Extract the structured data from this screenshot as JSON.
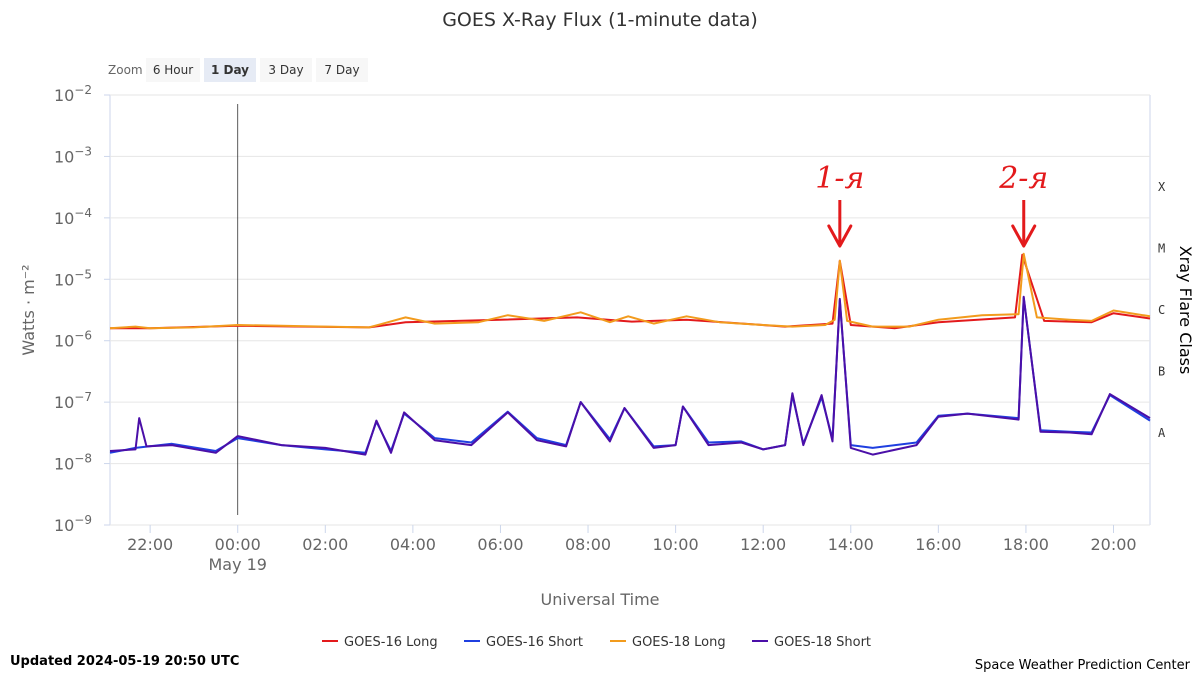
{
  "chart_data": {
    "type": "line",
    "title": "GOES X-Ray Flux (1-minute data)",
    "xlabel": "Universal Time",
    "ylabel": "Watts · m⁻²",
    "y_scale": "log",
    "ylim": [
      1e-09,
      0.01
    ],
    "y_ticks": [
      {
        "value": 0.01,
        "base": "10",
        "exp": "−2"
      },
      {
        "value": 0.001,
        "base": "10",
        "exp": "−3"
      },
      {
        "value": 0.0001,
        "base": "10",
        "exp": "−4"
      },
      {
        "value": 1e-05,
        "base": "10",
        "exp": "−5"
      },
      {
        "value": 1e-06,
        "base": "10",
        "exp": "−6"
      },
      {
        "value": 1e-07,
        "base": "10",
        "exp": "−7"
      },
      {
        "value": 1e-08,
        "base": "10",
        "exp": "−8"
      },
      {
        "value": 1e-09,
        "base": "10",
        "exp": "−9"
      }
    ],
    "xlim": [
      "2024-05-18T21:05",
      "2024-05-19T20:50"
    ],
    "x_ticks": [
      {
        "time": "2024-05-18T22:00",
        "label": "22:00"
      },
      {
        "time": "2024-05-19T00:00",
        "label": "00:00",
        "sublabel": "May 19"
      },
      {
        "time": "2024-05-19T02:00",
        "label": "02:00"
      },
      {
        "time": "2024-05-19T04:00",
        "label": "04:00"
      },
      {
        "time": "2024-05-19T06:00",
        "label": "06:00"
      },
      {
        "time": "2024-05-19T08:00",
        "label": "08:00"
      },
      {
        "time": "2024-05-19T10:00",
        "label": "10:00"
      },
      {
        "time": "2024-05-19T12:00",
        "label": "12:00"
      },
      {
        "time": "2024-05-19T14:00",
        "label": "14:00"
      },
      {
        "time": "2024-05-19T16:00",
        "label": "16:00"
      },
      {
        "time": "2024-05-19T18:00",
        "label": "18:00"
      },
      {
        "time": "2024-05-19T20:00",
        "label": "20:00"
      }
    ],
    "day_marker": "2024-05-19T00:00",
    "right_axis": {
      "title": "Xray Flare Class",
      "classes": [
        {
          "label": "X",
          "value": 0.0001
        },
        {
          "label": "M",
          "value": 1e-05
        },
        {
          "label": "C",
          "value": 1e-06
        },
        {
          "label": "B",
          "value": 1e-07
        },
        {
          "label": "A",
          "value": 1e-08
        }
      ]
    },
    "grid": "horizontal",
    "legend_position": "bottom-center",
    "series": [
      {
        "name": "GOES-16 Long",
        "color": "#e31a1c",
        "points": [
          [
            "2024-05-18T21:05",
            1.6e-06
          ],
          [
            "2024-05-18T22:00",
            1.6e-06
          ],
          [
            "2024-05-19T00:00",
            1.75e-06
          ],
          [
            "2024-05-19T03:00",
            1.65e-06
          ],
          [
            "2024-05-19T03:50",
            2e-06
          ],
          [
            "2024-05-19T06:00",
            2.2e-06
          ],
          [
            "2024-05-19T07:45",
            2.4e-06
          ],
          [
            "2024-05-19T09:00",
            2.05e-06
          ],
          [
            "2024-05-19T10:15",
            2.2e-06
          ],
          [
            "2024-05-19T12:30",
            1.7e-06
          ],
          [
            "2024-05-19T13:35",
            1.9e-06
          ],
          [
            "2024-05-19T13:45",
            2e-05
          ],
          [
            "2024-05-19T14:00",
            1.8e-06
          ],
          [
            "2024-05-19T15:00",
            1.6e-06
          ],
          [
            "2024-05-19T16:00",
            2e-06
          ],
          [
            "2024-05-19T17:45",
            2.4e-06
          ],
          [
            "2024-05-19T17:55",
            2.5e-05
          ],
          [
            "2024-05-19T18:25",
            2.1e-06
          ],
          [
            "2024-05-19T19:30",
            2e-06
          ],
          [
            "2024-05-19T20:00",
            2.8e-06
          ],
          [
            "2024-05-19T20:50",
            2.3e-06
          ]
        ]
      },
      {
        "name": "GOES-16 Short",
        "color": "#1f3fe0",
        "points": [
          [
            "2024-05-18T21:05",
            1.5e-08
          ],
          [
            "2024-05-18T21:40",
            1.8e-08
          ],
          [
            "2024-05-18T22:30",
            2.1e-08
          ],
          [
            "2024-05-18T23:30",
            1.6e-08
          ],
          [
            "2024-05-19T00:00",
            2.6e-08
          ],
          [
            "2024-05-19T01:00",
            2e-08
          ],
          [
            "2024-05-19T02:00",
            1.7e-08
          ],
          [
            "2024-05-19T02:55",
            1.5e-08
          ],
          [
            "2024-05-19T03:10",
            4.8e-08
          ],
          [
            "2024-05-19T03:30",
            1.6e-08
          ],
          [
            "2024-05-19T03:48",
            6.5e-08
          ],
          [
            "2024-05-19T04:30",
            2.6e-08
          ],
          [
            "2024-05-19T05:20",
            2.2e-08
          ],
          [
            "2024-05-19T06:10",
            7e-08
          ],
          [
            "2024-05-19T06:50",
            2.6e-08
          ],
          [
            "2024-05-19T07:30",
            2e-08
          ],
          [
            "2024-05-19T07:50",
            1e-07
          ],
          [
            "2024-05-19T08:30",
            2.5e-08
          ],
          [
            "2024-05-19T08:50",
            8e-08
          ],
          [
            "2024-05-19T09:30",
            1.9e-08
          ],
          [
            "2024-05-19T10:00",
            2e-08
          ],
          [
            "2024-05-19T10:10",
            8.5e-08
          ],
          [
            "2024-05-19T10:45",
            2.2e-08
          ],
          [
            "2024-05-19T11:30",
            2.3e-08
          ],
          [
            "2024-05-19T12:00",
            1.7e-08
          ],
          [
            "2024-05-19T12:30",
            2e-08
          ],
          [
            "2024-05-19T12:40",
            1.3e-07
          ],
          [
            "2024-05-19T12:55",
            2.1e-08
          ],
          [
            "2024-05-19T13:20",
            1.2e-07
          ],
          [
            "2024-05-19T13:35",
            2.5e-08
          ],
          [
            "2024-05-19T13:45",
            4.5e-06
          ],
          [
            "2024-05-19T14:00",
            2e-08
          ],
          [
            "2024-05-19T14:30",
            1.8e-08
          ],
          [
            "2024-05-19T15:30",
            2.2e-08
          ],
          [
            "2024-05-19T16:00",
            6e-08
          ],
          [
            "2024-05-19T16:40",
            6.5e-08
          ],
          [
            "2024-05-19T17:50",
            5.5e-08
          ],
          [
            "2024-05-19T17:57",
            5e-06
          ],
          [
            "2024-05-19T18:20",
            3.5e-08
          ],
          [
            "2024-05-19T19:00",
            3.3e-08
          ],
          [
            "2024-05-19T19:30",
            3.2e-08
          ],
          [
            "2024-05-19T19:55",
            1.3e-07
          ],
          [
            "2024-05-19T20:50",
            5e-08
          ]
        ]
      },
      {
        "name": "GOES-18 Long",
        "color": "#f29b1d",
        "points": [
          [
            "2024-05-18T21:05",
            1.6e-06
          ],
          [
            "2024-05-18T21:40",
            1.7e-06
          ],
          [
            "2024-05-18T22:00",
            1.6e-06
          ],
          [
            "2024-05-18T23:00",
            1.65e-06
          ],
          [
            "2024-05-19T00:00",
            1.8e-06
          ],
          [
            "2024-05-19T01:00",
            1.75e-06
          ],
          [
            "2024-05-19T02:00",
            1.7e-06
          ],
          [
            "2024-05-19T03:00",
            1.65e-06
          ],
          [
            "2024-05-19T03:50",
            2.4e-06
          ],
          [
            "2024-05-19T04:30",
            1.9e-06
          ],
          [
            "2024-05-19T05:30",
            2e-06
          ],
          [
            "2024-05-19T06:10",
            2.6e-06
          ],
          [
            "2024-05-19T07:00",
            2.1e-06
          ],
          [
            "2024-05-19T07:50",
            2.9e-06
          ],
          [
            "2024-05-19T08:30",
            2e-06
          ],
          [
            "2024-05-19T08:55",
            2.5e-06
          ],
          [
            "2024-05-19T09:30",
            1.9e-06
          ],
          [
            "2024-05-19T10:15",
            2.5e-06
          ],
          [
            "2024-05-19T11:00",
            2e-06
          ],
          [
            "2024-05-19T12:00",
            1.8e-06
          ],
          [
            "2024-05-19T12:40",
            1.7e-06
          ],
          [
            "2024-05-19T13:25",
            1.8e-06
          ],
          [
            "2024-05-19T13:38",
            2.2e-06
          ],
          [
            "2024-05-19T13:45",
            2e-05
          ],
          [
            "2024-05-19T13:55",
            2.1e-06
          ],
          [
            "2024-05-19T14:30",
            1.7e-06
          ],
          [
            "2024-05-19T15:20",
            1.7e-06
          ],
          [
            "2024-05-19T16:00",
            2.2e-06
          ],
          [
            "2024-05-19T17:00",
            2.6e-06
          ],
          [
            "2024-05-19T17:50",
            2.7e-06
          ],
          [
            "2024-05-19T17:57",
            2.6e-05
          ],
          [
            "2024-05-19T18:15",
            2.4e-06
          ],
          [
            "2024-05-19T19:00",
            2.2e-06
          ],
          [
            "2024-05-19T19:30",
            2.1e-06
          ],
          [
            "2024-05-19T20:00",
            3.1e-06
          ],
          [
            "2024-05-19T20:50",
            2.5e-06
          ]
        ]
      },
      {
        "name": "GOES-18 Short",
        "color": "#4b0fa8",
        "points": [
          [
            "2024-05-18T21:05",
            1.6e-08
          ],
          [
            "2024-05-18T21:40",
            1.7e-08
          ],
          [
            "2024-05-18T21:45",
            5.5e-08
          ],
          [
            "2024-05-18T21:55",
            1.9e-08
          ],
          [
            "2024-05-18T22:30",
            2e-08
          ],
          [
            "2024-05-18T23:30",
            1.5e-08
          ],
          [
            "2024-05-19T00:00",
            2.8e-08
          ],
          [
            "2024-05-19T01:00",
            2e-08
          ],
          [
            "2024-05-19T02:00",
            1.8e-08
          ],
          [
            "2024-05-19T02:55",
            1.4e-08
          ],
          [
            "2024-05-19T03:10",
            5e-08
          ],
          [
            "2024-05-19T03:30",
            1.5e-08
          ],
          [
            "2024-05-19T03:48",
            6.8e-08
          ],
          [
            "2024-05-19T04:30",
            2.4e-08
          ],
          [
            "2024-05-19T05:20",
            2e-08
          ],
          [
            "2024-05-19T06:10",
            6.8e-08
          ],
          [
            "2024-05-19T06:50",
            2.4e-08
          ],
          [
            "2024-05-19T07:30",
            1.9e-08
          ],
          [
            "2024-05-19T07:50",
            1e-07
          ],
          [
            "2024-05-19T08:30",
            2.3e-08
          ],
          [
            "2024-05-19T08:50",
            8e-08
          ],
          [
            "2024-05-19T09:30",
            1.8e-08
          ],
          [
            "2024-05-19T10:00",
            2e-08
          ],
          [
            "2024-05-19T10:10",
            8.5e-08
          ],
          [
            "2024-05-19T10:45",
            2e-08
          ],
          [
            "2024-05-19T11:30",
            2.2e-08
          ],
          [
            "2024-05-19T12:00",
            1.7e-08
          ],
          [
            "2024-05-19T12:30",
            2e-08
          ],
          [
            "2024-05-19T12:40",
            1.4e-07
          ],
          [
            "2024-05-19T12:55",
            2e-08
          ],
          [
            "2024-05-19T13:20",
            1.3e-07
          ],
          [
            "2024-05-19T13:35",
            2.3e-08
          ],
          [
            "2024-05-19T13:45",
            4.8e-06
          ],
          [
            "2024-05-19T14:00",
            1.8e-08
          ],
          [
            "2024-05-19T14:30",
            1.4e-08
          ],
          [
            "2024-05-19T15:30",
            2e-08
          ],
          [
            "2024-05-19T16:00",
            5.8e-08
          ],
          [
            "2024-05-19T16:40",
            6.5e-08
          ],
          [
            "2024-05-19T17:50",
            5.2e-08
          ],
          [
            "2024-05-19T17:57",
            5.2e-06
          ],
          [
            "2024-05-19T18:20",
            3.3e-08
          ],
          [
            "2024-05-19T19:00",
            3.2e-08
          ],
          [
            "2024-05-19T19:30",
            3e-08
          ],
          [
            "2024-05-19T19:55",
            1.35e-07
          ],
          [
            "2024-05-19T20:50",
            5.5e-08
          ]
        ]
      }
    ],
    "annotations": [
      {
        "text": "1-я",
        "time": "2024-05-19T13:45",
        "color": "#e31a1c"
      },
      {
        "text": "2-я",
        "time": "2024-05-19T17:57",
        "color": "#e31a1c"
      }
    ]
  },
  "zoom": {
    "label": "Zoom",
    "buttons": [
      {
        "label": "6 Hour",
        "active": false
      },
      {
        "label": "1 Day",
        "active": true
      },
      {
        "label": "3 Day",
        "active": false
      },
      {
        "label": "7 Day",
        "active": false
      }
    ]
  },
  "footer": {
    "updated": "Updated 2024-05-19 20:50 UTC",
    "credit": "Space Weather Prediction Center"
  }
}
